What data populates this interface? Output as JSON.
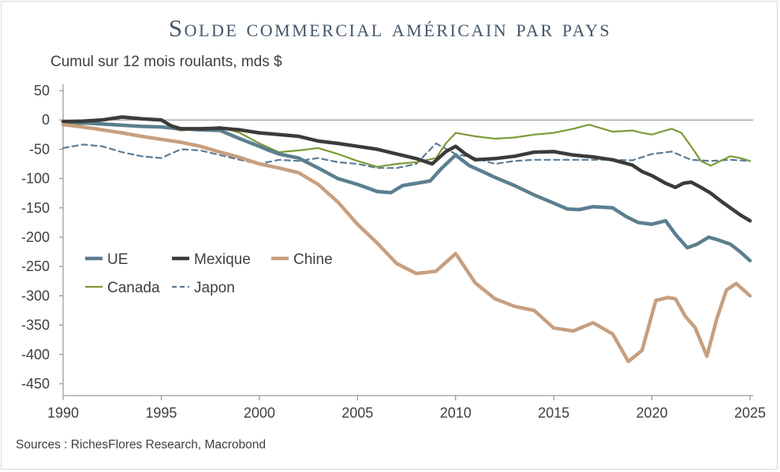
{
  "chart_data": {
    "type": "line",
    "title": "Solde commercial américain par pays",
    "subtitle": "Cumul sur 12 mois roulants, mds $",
    "source": "Sources : RichesFlores Research, Macrobond",
    "xlim": [
      1990,
      2025
    ],
    "ylim": [
      -450,
      50
    ],
    "x_ticks": [
      "1990",
      "1995",
      "2000",
      "2005",
      "2010",
      "2015",
      "2020",
      "2025"
    ],
    "y_ticks": [
      "50",
      "0",
      "-50",
      "-100",
      "-150",
      "-200",
      "-250",
      "-300",
      "-350",
      "-400",
      "-450"
    ],
    "legend_position": "left",
    "series": [
      {
        "name": "UE",
        "color": "#5a7f8f",
        "width": 4.5,
        "dash": "",
        "x": [
          1990,
          1991,
          1992,
          1993,
          1994,
          1995,
          1996,
          1997,
          1998,
          1999,
          2000,
          2000.5,
          2001,
          2002,
          2003,
          2004,
          2005,
          2006,
          2006.7,
          2007.3,
          2008,
          2008.7,
          2009.3,
          2010,
          2010.7,
          2011.5,
          2012,
          2013,
          2014,
          2015,
          2015.7,
          2016.3,
          2017,
          2018,
          2018.7,
          2019.3,
          2020,
          2020.7,
          2021.2,
          2021.8,
          2022.3,
          2022.9,
          2023.4,
          2024,
          2024.5,
          2025
        ],
        "y": [
          -3,
          -5,
          -7,
          -9,
          -11,
          -12,
          -15,
          -17,
          -18,
          -32,
          -45,
          -52,
          -58,
          -65,
          -82,
          -100,
          -110,
          -122,
          -124,
          -112,
          -108,
          -104,
          -82,
          -60,
          -78,
          -90,
          -98,
          -112,
          -128,
          -142,
          -152,
          -153,
          -148,
          -150,
          -165,
          -175,
          -178,
          -172,
          -195,
          -218,
          -212,
          -200,
          -205,
          -212,
          -225,
          -240
        ]
      },
      {
        "name": "Mexique",
        "color": "#3b3b3b",
        "width": 4.5,
        "dash": "",
        "x": [
          1990,
          1991,
          1992,
          1993,
          1994,
          1995,
          1995.5,
          1996,
          1997,
          1998,
          1999,
          2000,
          2001,
          2002,
          2003,
          2004,
          2005,
          2006,
          2007,
          2008,
          2008.8,
          2009.5,
          2010,
          2010.5,
          2011,
          2012,
          2013,
          2014,
          2015,
          2016,
          2017,
          2018,
          2019,
          2019.5,
          2020,
          2020.7,
          2021.2,
          2021.6,
          2022,
          2022.5,
          2023,
          2023.5,
          2024,
          2024.5,
          2025
        ],
        "y": [
          -3,
          -2,
          0,
          5,
          2,
          0,
          -10,
          -15,
          -15,
          -14,
          -17,
          -22,
          -25,
          -28,
          -36,
          -40,
          -45,
          -50,
          -58,
          -66,
          -75,
          -54,
          -45,
          -58,
          -68,
          -66,
          -62,
          -55,
          -54,
          -60,
          -63,
          -68,
          -77,
          -88,
          -95,
          -108,
          -115,
          -108,
          -106,
          -115,
          -125,
          -138,
          -150,
          -162,
          -172
        ]
      },
      {
        "name": "Chine",
        "color": "#c79f7f",
        "width": 4.5,
        "dash": "",
        "x": [
          1990,
          1991,
          1992,
          1993,
          1994,
          1995,
          1996,
          1997,
          1998,
          1999,
          2000,
          2001,
          2002,
          2003,
          2004,
          2005,
          2006,
          2007,
          2008,
          2009,
          2010,
          2011,
          2012,
          2013,
          2014,
          2015,
          2016,
          2017,
          2018,
          2018.8,
          2019.5,
          2020.2,
          2020.8,
          2021.2,
          2021.7,
          2022.2,
          2022.8,
          2023.3,
          2023.8,
          2024.3,
          2025
        ],
        "y": [
          -8,
          -12,
          -17,
          -22,
          -28,
          -33,
          -38,
          -45,
          -55,
          -64,
          -75,
          -82,
          -90,
          -110,
          -140,
          -178,
          -210,
          -245,
          -262,
          -258,
          -228,
          -278,
          -305,
          -318,
          -325,
          -355,
          -360,
          -346,
          -365,
          -412,
          -393,
          -308,
          -303,
          -305,
          -335,
          -354,
          -403,
          -340,
          -290,
          -279,
          -300
        ]
      },
      {
        "name": "Canada",
        "color": "#7c9a3a",
        "width": 2.2,
        "dash": "",
        "x": [
          1990,
          1991,
          1992,
          1993,
          1994,
          1995,
          1996,
          1997,
          1998,
          1999,
          2000,
          2001,
          2002,
          2003,
          2004,
          2005,
          2006,
          2007,
          2008,
          2009,
          2009.5,
          2010,
          2010.5,
          2011,
          2012,
          2013,
          2014,
          2015,
          2016,
          2016.8,
          2017.5,
          2018,
          2019,
          2019.5,
          2020,
          2020.5,
          2021,
          2021.5,
          2022,
          2022.5,
          2023,
          2023.5,
          2024,
          2024.5,
          2025
        ],
        "y": [
          -8,
          -7,
          -7,
          -10,
          -12,
          -12,
          -18,
          -15,
          -12,
          -22,
          -40,
          -55,
          -52,
          -48,
          -58,
          -70,
          -80,
          -75,
          -72,
          -65,
          -40,
          -22,
          -25,
          -28,
          -32,
          -30,
          -25,
          -22,
          -15,
          -8,
          -15,
          -20,
          -18,
          -22,
          -25,
          -20,
          -15,
          -22,
          -45,
          -70,
          -78,
          -70,
          -62,
          -65,
          -70
        ]
      },
      {
        "name": "Japon",
        "color": "#5c7c96",
        "width": 2.2,
        "dash": "7 5",
        "x": [
          1990,
          1991,
          1992,
          1993,
          1994,
          1995,
          1996,
          1997,
          1998,
          1999,
          2000,
          2001,
          2002,
          2003,
          2004,
          2005,
          2006,
          2007,
          2008,
          2009,
          2010,
          2011,
          2012,
          2013,
          2014,
          2015,
          2016,
          2017,
          2018,
          2019,
          2020,
          2021,
          2022,
          2023,
          2024,
          2025
        ],
        "y": [
          -48,
          -42,
          -45,
          -55,
          -62,
          -65,
          -50,
          -52,
          -60,
          -68,
          -75,
          -68,
          -70,
          -65,
          -72,
          -75,
          -82,
          -82,
          -75,
          -40,
          -58,
          -65,
          -75,
          -70,
          -68,
          -68,
          -68,
          -68,
          -68,
          -69,
          -58,
          -54,
          -68,
          -70,
          -68,
          -70
        ]
      }
    ]
  }
}
